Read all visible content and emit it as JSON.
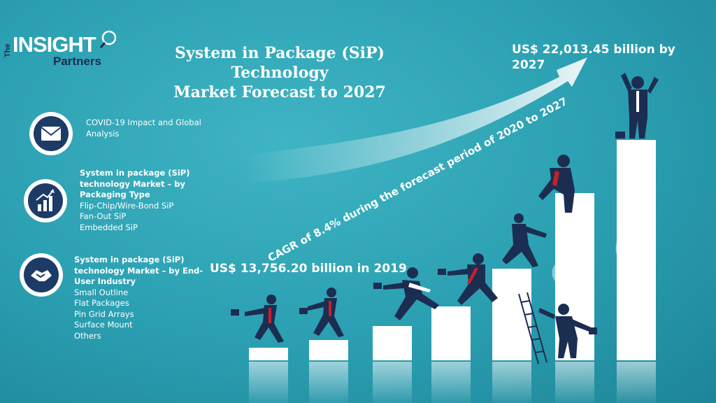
{
  "logo": {
    "the": "The",
    "insight": "INSIGHT",
    "partners": "Partners"
  },
  "title": {
    "line1": "System in Package (SiP) Technology",
    "line2": "Market Forecast to 2027"
  },
  "panels": [
    {
      "icon": "envelope-icon",
      "lines": [
        "COVID-19 Impact and Global",
        "Analysis"
      ]
    },
    {
      "icon": "growth-chart-icon",
      "heading": [
        "System in package (SiP)",
        "technology Market – by",
        "Packaging Type"
      ],
      "items": [
        "Flip-Chip/Wire-Bond SiP",
        "Fan-Out SiP",
        "Embedded SiP"
      ]
    },
    {
      "icon": "handshake-icon",
      "heading": [
        "System in package (SiP)",
        "technology Market – by End-",
        "User Industry"
      ],
      "items": [
        "Small Outline",
        "Flat Packages",
        "Pin Grid Arrays",
        "Surface Mount",
        "Others"
      ]
    }
  ],
  "values": {
    "start": "US$ 13,756.20 billion in 2019",
    "end_line1": "US$ 22,013.45 billion by",
    "end_line2": "2027",
    "cagr": "CAGR of 8.4% during the forecast period of 2020 to 2027"
  },
  "colors": {
    "figure": "#1c2d52",
    "tie": "#c8202a",
    "bar": "#ffffff"
  }
}
